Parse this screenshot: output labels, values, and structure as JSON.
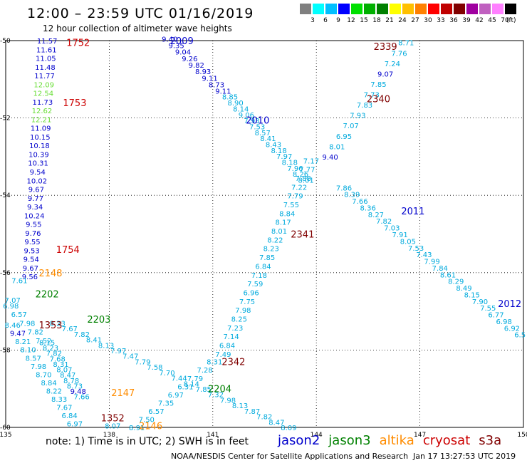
{
  "title": "12:00 – 23:59 UTC 01/16/2019",
  "subtitle": "12 hour collection of altimeter wave heights",
  "colorbar": {
    "labels": [
      "3",
      "6",
      "9",
      "12",
      "15",
      "18",
      "21",
      "24",
      "27",
      "30",
      "33",
      "36",
      "39",
      "42",
      "45",
      "70"
    ],
    "unit": "(ft)",
    "colors": [
      "#808080",
      "#00ffff",
      "#00bfff",
      "#0000ff",
      "#00e000",
      "#00b000",
      "#008000",
      "#ffff00",
      "#ffc000",
      "#ff8000",
      "#ff0000",
      "#c00000",
      "#800000",
      "#a000a0",
      "#c060c0",
      "#ff80ff",
      "#000000"
    ]
  },
  "chart_data": {
    "type": "scatter",
    "xlim": [
      135,
      150
    ],
    "ylim": [
      -60,
      -50
    ],
    "xticks": [
      "135",
      "138",
      "141",
      "144",
      "147",
      "150"
    ],
    "yticks": [
      "-50",
      "-52",
      "-54",
      "-56",
      "-58",
      "-60"
    ],
    "colors": {
      "jason2": "#0000cc",
      "jason3": "#008000",
      "altika": "#ff8c00",
      "cryosat": "#cc0000",
      "s3a": "#800000",
      "blue": "#0000cc",
      "lblue": "#00aadd",
      "lgreen": "#66dd33"
    },
    "passes": [
      {
        "label": "1752",
        "lon": 137.1,
        "lat": -50.05,
        "color": "cryosat"
      },
      {
        "label": "1753",
        "lon": 137.0,
        "lat": -51.6,
        "color": "cryosat"
      },
      {
        "label": "1754",
        "lon": 136.8,
        "lat": -55.4,
        "color": "cryosat"
      },
      {
        "label": "2009",
        "lon": 140.1,
        "lat": -50.0,
        "color": "jason2"
      },
      {
        "label": "2010",
        "lon": 142.3,
        "lat": -52.05,
        "color": "jason2"
      },
      {
        "label": "2011",
        "lon": 146.8,
        "lat": -54.4,
        "color": "jason2"
      },
      {
        "label": "2012",
        "lon": 149.6,
        "lat": -56.8,
        "color": "jason2"
      },
      {
        "label": "2339",
        "lon": 146.0,
        "lat": -50.15,
        "color": "s3a"
      },
      {
        "label": "2340",
        "lon": 145.8,
        "lat": -51.5,
        "color": "s3a"
      },
      {
        "label": "2341",
        "lon": 143.6,
        "lat": -55.0,
        "color": "s3a"
      },
      {
        "label": "2342",
        "lon": 141.6,
        "lat": -58.3,
        "color": "s3a"
      },
      {
        "label": "2148",
        "lon": 136.3,
        "lat": -56.0,
        "color": "altika"
      },
      {
        "label": "2147",
        "lon": 138.4,
        "lat": -59.1,
        "color": "altika"
      },
      {
        "label": "2146",
        "lon": 139.2,
        "lat": -59.95,
        "color": "altika"
      },
      {
        "label": "2202",
        "lon": 136.2,
        "lat": -56.55,
        "color": "jason3"
      },
      {
        "label": "2203",
        "lon": 137.7,
        "lat": -57.2,
        "color": "jason3"
      },
      {
        "label": "2204",
        "lon": 141.2,
        "lat": -59.0,
        "color": "jason3"
      },
      {
        "label": "1353",
        "lon": 136.3,
        "lat": -57.35,
        "color": "s3a"
      },
      {
        "label": "1352",
        "lon": 138.1,
        "lat": -59.75,
        "color": "s3a"
      }
    ],
    "tracks": [
      {
        "name": "cryosat_1753",
        "color": "blue",
        "start": [
          136.2,
          -50.0
        ],
        "end": [
          135.7,
          -56.1
        ],
        "values": [
          "11.57",
          "11.61",
          "11.05",
          "11.48",
          "11.77",
          "12.09",
          "12.54",
          "11.73",
          "12.62",
          "12.21",
          "11.09",
          "10.15",
          "10.18",
          "10.39",
          "10.31",
          "9.54",
          "10.02",
          "9.67",
          "9.77",
          "9.34",
          "10.24",
          "9.55",
          "9.76",
          "9.55",
          "9.53",
          "9.54",
          "9.67",
          "9.56"
        ],
        "value_colors": {
          "5": "lgreen",
          "6": "lgreen",
          "8": "lgreen",
          "9": "lgreen"
        }
      },
      {
        "name": "altika_2148",
        "color": "lblue",
        "start": [
          135.4,
          -56.2
        ],
        "end": [
          135.2,
          -56.7
        ],
        "values": [
          "7.61",
          "7.07"
        ]
      },
      {
        "name": "jason2_2009",
        "color": "blue",
        "start": [
          139.75,
          -49.95
        ],
        "end": [
          141.3,
          -51.3
        ],
        "values": [
          "9.40",
          "9.35",
          "9.04",
          "9.26",
          "9.82",
          "8.93",
          "9.11",
          "8.73",
          "9.11"
        ]
      },
      {
        "name": "jason2_2010",
        "color": "lblue",
        "start": [
          141.5,
          -51.45
        ],
        "end": [
          143.7,
          -53.6
        ],
        "values": [
          "8.85",
          "8.90",
          "8.14",
          "9.06",
          "7.93",
          "7.53",
          "8.57",
          "8.41",
          "8.43",
          "8.18",
          "7.97",
          "8.18",
          "7.96",
          "8.26",
          "8.01"
        ]
      },
      {
        "name": "jason2_2011",
        "color": "lblue",
        "start": [
          144.8,
          -53.8
        ],
        "end": [
          149.9,
          -57.6
        ],
        "values": [
          "7.86",
          "8.39",
          "7.66",
          "8.36",
          "8.27",
          "7.82",
          "7.03",
          "7.91",
          "8.05",
          "7.53",
          "7.43",
          "7.99",
          "7.84",
          "8.61",
          "8.29",
          "8.49",
          "8.15",
          "7.90",
          "7.55",
          "6.77",
          "6.98",
          "6.92",
          "6.5"
        ]
      },
      {
        "name": "s3a_2340",
        "color": "lblue",
        "start": [
          146.6,
          -50.05
        ],
        "end": [
          144.4,
          -53.0
        ],
        "values": [
          "8.71",
          "7.76",
          "7.24",
          "9.07",
          "7.85",
          "7.73",
          "7.83",
          "7.93",
          "7.07",
          "6.95",
          "8.01",
          "9.40"
        ],
        "value_colors": {
          "3": "blue",
          "11": "blue"
        }
      },
      {
        "name": "s3a_2341",
        "color": "lblue",
        "start": [
          143.85,
          -53.1
        ],
        "end": [
          141.3,
          -58.1
        ],
        "values": [
          "7.17",
          "7.77",
          "7.88",
          "7.22",
          "7.79",
          "7.55",
          "8.84",
          "8.17",
          "8.01",
          "8.22",
          "8.23",
          "7.85",
          "6.84",
          "7.18",
          "7.59",
          "6.96",
          "7.75",
          "7.98",
          "8.25",
          "7.23",
          "7.14",
          "6.84",
          "7.49"
        ]
      },
      {
        "name": "s3a_2342",
        "color": "lblue",
        "start": [
          141.05,
          -58.3
        ],
        "end": [
          138.8,
          -60.0
        ],
        "values": [
          "8.31",
          "7.28",
          "7.79",
          "6.31",
          "6.97",
          "7.35",
          "6.57",
          "7.50",
          "8.91"
        ]
      },
      {
        "name": "altika_2202",
        "color": "lblue",
        "start": [
          135.15,
          -56.85
        ],
        "end": [
          136.1,
          -57.75
        ],
        "values": [
          "6.98",
          "6.57",
          "7.98",
          "7.82",
          "7.52"
        ]
      },
      {
        "name": "jason3_2203",
        "color": "lblue",
        "start": [
          136.5,
          -57.3
        ],
        "end": [
          143.2,
          -60.0
        ],
        "values": [
          "8.23",
          "7.67",
          "7.82",
          "8.41",
          "8.13",
          "7.97",
          "7.47",
          "7.79",
          "7.58",
          "7.70",
          "7.44",
          "8.14",
          "7.85",
          "7.32",
          "7.98",
          "8.13",
          "7.87",
          "7.82",
          "8.47",
          "8.09"
        ]
      },
      {
        "name": "altika_left",
        "color": "lblue",
        "start": [
          135.2,
          -57.35
        ],
        "end": [
          137.0,
          -59.9
        ],
        "values": [
          "8.46",
          "9.47",
          "8.21",
          "8.10",
          "8.57",
          "7.98",
          "8.70",
          "8.84",
          "8.22",
          "8.33",
          "7.67",
          "6.84",
          "6.97"
        ],
        "value_colors": {
          "1": "blue"
        }
      },
      {
        "name": "altika_mid",
        "color": "lblue",
        "start": [
          136.2,
          -57.8
        ],
        "end": [
          137.2,
          -59.2
        ],
        "values": [
          "8.15",
          "8.23",
          "7.82",
          "7.68",
          "8.31",
          "8.07",
          "8.47",
          "8.78",
          "8.73",
          "9.48",
          "7.66"
        ],
        "value_colors": {
          "9": "blue"
        }
      },
      {
        "name": "altika_2146",
        "color": "lblue",
        "start": [
          138.1,
          -59.95
        ],
        "end": [
          138.1,
          -59.95
        ],
        "values": [
          "8.07"
        ]
      }
    ]
  },
  "footer": {
    "note": "note:  1) Time is in UTC;  2) SWH is in feet",
    "sats": [
      {
        "name": "jason2",
        "color": "#0000cc"
      },
      {
        "name": "jason3",
        "color": "#008000"
      },
      {
        "name": "altika",
        "color": "#ff8c00"
      },
      {
        "name": "cryosat",
        "color": "#cc0000"
      },
      {
        "name": "s3a",
        "color": "#800000"
      }
    ],
    "credit": "NOAA/NESDIS Center for Satellite Applications and Research",
    "timestamp": "Jan 17 13:27:53 UTC 2019"
  }
}
